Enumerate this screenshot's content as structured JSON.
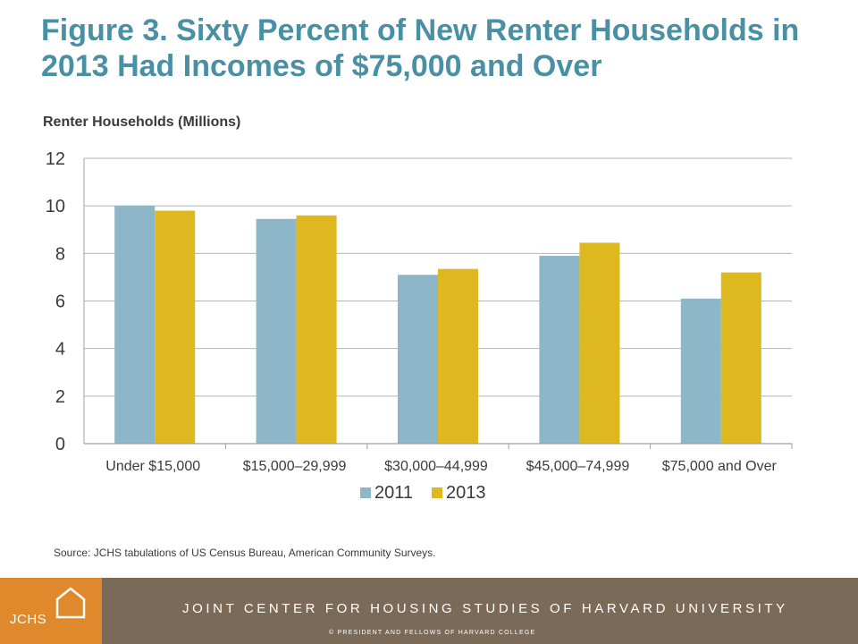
{
  "title": "Figure 3. Sixty Percent of New Renter Households in 2013 Had Incomes of $75,000 and Over",
  "chart_data": {
    "type": "bar",
    "ylabel": "Renter Households (Millions)",
    "categories": [
      "Under $15,000",
      "$15,000–29,999",
      "$30,000–44,999",
      "$45,000–74,999",
      "$75,000 and Over"
    ],
    "series": [
      {
        "name": "2011",
        "color": "#8DB6C8",
        "values": [
          10.0,
          9.45,
          7.1,
          7.9,
          6.1
        ]
      },
      {
        "name": "2013",
        "color": "#DDB91F",
        "values": [
          9.8,
          9.6,
          7.35,
          8.45,
          7.2
        ]
      }
    ],
    "ylim": [
      0,
      12
    ],
    "yticks": [
      "0",
      "2",
      "4",
      "6",
      "8",
      "10",
      "12"
    ],
    "grid": true,
    "legend_position": "bottom"
  },
  "source": "Source: JCHS  tabulations of US Census Bureau, American Community Surveys.",
  "footer": {
    "logo_text": "JCHS",
    "organization": "JOINT CENTER FOR HOUSING STUDIES OF HARVARD UNIVERSITY",
    "copyright": "© PRESIDENT  AND FELLOWS  OF  HARVARD  COLLEGE"
  },
  "colors": {
    "title": "#4A90A4",
    "logo_bg": "#E0892C",
    "footer_bg": "#7B6A57"
  }
}
